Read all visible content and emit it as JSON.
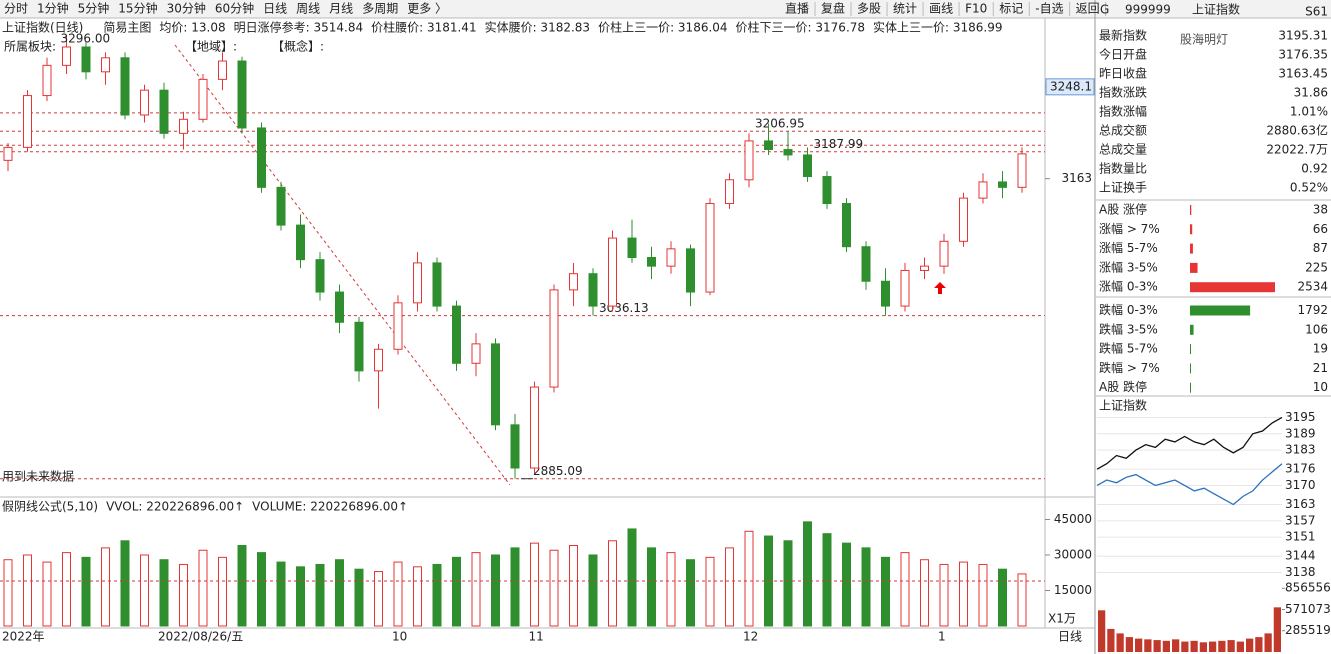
{
  "toolbar": {
    "left": [
      "分时",
      "1分钟",
      "5分钟",
      "15分钟",
      "30分钟",
      "60分钟",
      "日线",
      "周线",
      "月线",
      "多周期",
      "更多 〉"
    ],
    "active": "日线",
    "right": [
      "直播",
      "复盘",
      "多股",
      "统计",
      "画线",
      "F10",
      "标记",
      "-自选",
      "返回"
    ]
  },
  "header": {
    "title": "上证指数(日线)",
    "main": "简易主图",
    "items": [
      "均价: 13.08",
      "明日涨停参考: 3514.84",
      "价柱腰价: 3181.41",
      "实体腰价: 3182.83",
      "价柱上三一价: 3186.04",
      "价柱下三一价: 3176.78",
      "实体上三一价: 3186.99"
    ],
    "tags": [
      "所属板块:",
      "【地域】:",
      "【概念】:"
    ],
    "warning": "用到未来数据"
  },
  "chart_data": [
    {
      "type": "candlestick",
      "up_color": "#e53535",
      "down_color": "#2f8f2f",
      "categories": [
        "2022年",
        null,
        null,
        null,
        null,
        null,
        null,
        null,
        "2022/08/26/五",
        null,
        null,
        null,
        null,
        null,
        null,
        null,
        null,
        null,
        null,
        null,
        "10",
        null,
        null,
        null,
        null,
        null,
        null,
        "11",
        null,
        null,
        null,
        null,
        null,
        null,
        null,
        null,
        null,
        null,
        "12",
        null,
        null,
        null,
        null,
        null,
        null,
        null,
        null,
        null,
        "1",
        null,
        null,
        null,
        null
      ],
      "open": [
        3180,
        3192,
        3240,
        3268,
        3285,
        3262,
        3275,
        3222,
        3245,
        3205,
        3218,
        3255,
        3272,
        3210,
        3155,
        3120,
        3088,
        3058,
        3030,
        2985,
        3005,
        3048,
        3085,
        3045,
        2992,
        3010,
        2935,
        2895,
        2970,
        3060,
        3075,
        3045,
        3108,
        3090,
        3082,
        3098,
        3058,
        3140,
        3162,
        3198,
        3190,
        3185,
        3165,
        3140,
        3100,
        3068,
        3045,
        3078,
        3082,
        3105,
        3145,
        3160,
        3155
      ],
      "high": [
        3196,
        3245,
        3275,
        3296,
        3290,
        3280,
        3280,
        3250,
        3252,
        3225,
        3260,
        3280,
        3276,
        3215,
        3160,
        3130,
        3095,
        3065,
        3035,
        3010,
        3055,
        3095,
        3090,
        3050,
        3020,
        3015,
        2945,
        2975,
        3065,
        3085,
        3080,
        3115,
        3125,
        3100,
        3105,
        3102,
        3145,
        3168,
        3205,
        3214,
        3207,
        3192,
        3170,
        3145,
        3105,
        3080,
        3085,
        3090,
        3112,
        3150,
        3168,
        3170,
        3192
      ],
      "low": [
        3170,
        3188,
        3235,
        3260,
        3255,
        3250,
        3218,
        3215,
        3200,
        3190,
        3215,
        3245,
        3205,
        3150,
        3115,
        3080,
        3050,
        3020,
        2975,
        2950,
        3000,
        3040,
        3040,
        2985,
        2980,
        2930,
        2885.09,
        2890,
        2965,
        3045,
        3036.13,
        3040,
        3085,
        3070,
        3075,
        3045,
        3055,
        3135,
        3155,
        3185,
        3180,
        3160,
        3135,
        3095,
        3060,
        3036,
        3040,
        3070,
        3075,
        3100,
        3140,
        3145,
        3150
      ],
      "close": [
        3192,
        3240,
        3268,
        3285,
        3262,
        3275,
        3222,
        3245,
        3205,
        3218,
        3255,
        3272,
        3210,
        3155,
        3120,
        3088,
        3058,
        3030,
        2985,
        3005,
        3048,
        3085,
        3045,
        2992,
        3010,
        2935,
        2895,
        2970,
        3060,
        3075,
        3045,
        3108,
        3090,
        3082,
        3098,
        3058,
        3140,
        3162,
        3198,
        3190,
        3185,
        3165,
        3140,
        3100,
        3068,
        3045,
        3078,
        3082,
        3105,
        3145,
        3160,
        3155,
        3186
      ],
      "ylim": [
        2870,
        3310
      ],
      "yticks": [
        3248.1,
        3163
      ],
      "levels": [
        3224,
        3206.95,
        3194,
        3187.99,
        3036.13,
        2885.09
      ],
      "level_labels": [
        null,
        "3206.95",
        null,
        "3187.99",
        "3036.13",
        "2885.09"
      ],
      "high_note": {
        "value": 3296,
        "label": "3296.00"
      },
      "level_color": "#d03a3a"
    },
    {
      "type": "bar",
      "title": "假阴线公式(5,10)",
      "indicators": [
        "VVOL: 220226896.00↑",
        "VOLUME: 220226896.00↑"
      ],
      "unit": "X1万",
      "values": [
        28000,
        30000,
        27000,
        31000,
        29000,
        33000,
        36000,
        30000,
        28000,
        26000,
        32000,
        29000,
        34000,
        31000,
        27000,
        25000,
        26000,
        28000,
        24000,
        23000,
        27000,
        25000,
        26000,
        29000,
        31000,
        30000,
        33000,
        35000,
        32000,
        34000,
        30000,
        36000,
        41000,
        33000,
        31000,
        28000,
        29000,
        33000,
        40000,
        38000,
        36000,
        44000,
        39000,
        35000,
        33000,
        29000,
        31000,
        28000,
        26000,
        27000,
        26000,
        24000,
        22000
      ],
      "ylim": [
        0,
        49000
      ],
      "yticks": [
        15000,
        30000,
        45000
      ],
      "ref": 19000,
      "axis_label": "日线"
    },
    {
      "type": "line",
      "title": "上证指数",
      "series": [
        {
          "name": "上证指数",
          "color": "#111111",
          "values": [
            3176,
            3178,
            3181,
            3180,
            3183,
            3185,
            3184,
            3187,
            3186,
            3188,
            3186,
            3185,
            3187,
            3184,
            3182,
            3184,
            3189,
            3190,
            3193,
            3195
          ]
        },
        {
          "color": "#2a6fc0",
          "values": [
            3170,
            3172,
            3171,
            3173,
            3174,
            3172,
            3170,
            3171,
            3172,
            3170,
            3168,
            3169,
            3167,
            3165,
            3163,
            3166,
            3168,
            3172,
            3175,
            3178
          ]
        }
      ],
      "ylim": [
        3136,
        3197
      ],
      "yticks": [
        3195,
        3189,
        3183,
        3176,
        3170,
        3163,
        3157,
        3151,
        3144,
        3138
      ]
    },
    {
      "type": "bar",
      "values": [
        560000,
        310000,
        250000,
        200000,
        180000,
        170000,
        160000,
        150000,
        170000,
        140000,
        150000,
        130000,
        140000,
        150000,
        160000,
        140000,
        180000,
        200000,
        250000,
        600000
      ],
      "color": "#c0392b",
      "ylim": [
        0,
        900000
      ],
      "yticks": [
        285519,
        571073,
        856556
      ]
    }
  ],
  "panel": {
    "code_prefix": "G",
    "code": "999999",
    "name": "上证指数",
    "badge": "S61",
    "watermark": "股海明灯",
    "quotes": [
      {
        "label": "最新指数",
        "value": "3195.31",
        "color": "#e53535"
      },
      {
        "label": "今日开盘",
        "value": "3176.35",
        "color": "#e53535"
      },
      {
        "label": "昨日收盘",
        "value": "3163.45",
        "color": "#222222"
      },
      {
        "label": "指数涨跌",
        "value": "31.86",
        "color": "#e53535"
      },
      {
        "label": "指数涨幅",
        "value": "1.01%",
        "color": "#e53535"
      },
      {
        "label": "总成交额",
        "value": "2880.63亿",
        "color": "#222222"
      },
      {
        "label": "总成交量",
        "value": "22022.7万",
        "color": "#222222"
      },
      {
        "label": "指数量比",
        "value": "0.92",
        "color": "#2f8f2f"
      },
      {
        "label": "上证换手",
        "value": "0.52%",
        "color": "#222222"
      }
    ],
    "breadth": [
      {
        "label": "A股 涨停",
        "count": 38,
        "color": "#e53535"
      },
      {
        "label": "涨幅 > 7%",
        "count": 66,
        "color": "#e53535"
      },
      {
        "label": "涨幅 5-7%",
        "count": 87,
        "color": "#e53535"
      },
      {
        "label": "涨幅 3-5%",
        "count": 225,
        "color": "#e53535"
      },
      {
        "label": "涨幅 0-3%",
        "count": 2534,
        "color": "#e53535"
      },
      {
        "label": "跌幅 0-3%",
        "count": 1792,
        "color": "#2f8f2f"
      },
      {
        "label": "跌幅 3-5%",
        "count": 106,
        "color": "#2f8f2f"
      },
      {
        "label": "跌幅 5-7%",
        "count": 19,
        "color": "#2f8f2f"
      },
      {
        "label": "跌幅 > 7%",
        "count": 21,
        "color": "#2f8f2f"
      },
      {
        "label": "A股 跌停",
        "count": 10,
        "color": "#2f8f2f"
      }
    ]
  }
}
